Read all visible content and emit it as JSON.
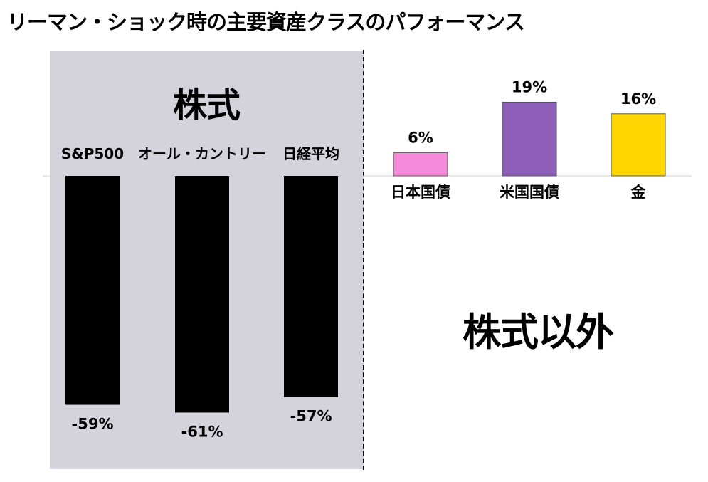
{
  "title": "リーマン・ショック時の主要資産クラスのパフォーマンス",
  "groups": {
    "stocks": "株式",
    "non_stocks": "株式以外"
  },
  "chart_data": {
    "type": "bar",
    "title": "リーマン・ショック時の主要資産クラスのパフォーマンス",
    "categories": [
      "S&P500",
      "オール・カントリー",
      "日経平均",
      "日本国債",
      "米国国債",
      "金"
    ],
    "values": [
      -59,
      -61,
      -57,
      6,
      19,
      16
    ],
    "value_labels": [
      "-59%",
      "-61%",
      "-57%",
      "6%",
      "19%",
      "16%"
    ],
    "units": "%",
    "colors": [
      "#000000",
      "#000000",
      "#000000",
      "#f68ada",
      "#8e5fb8",
      "#ffd700"
    ],
    "panel_color": "#d4d3dc",
    "grid": false,
    "legend": "none"
  }
}
